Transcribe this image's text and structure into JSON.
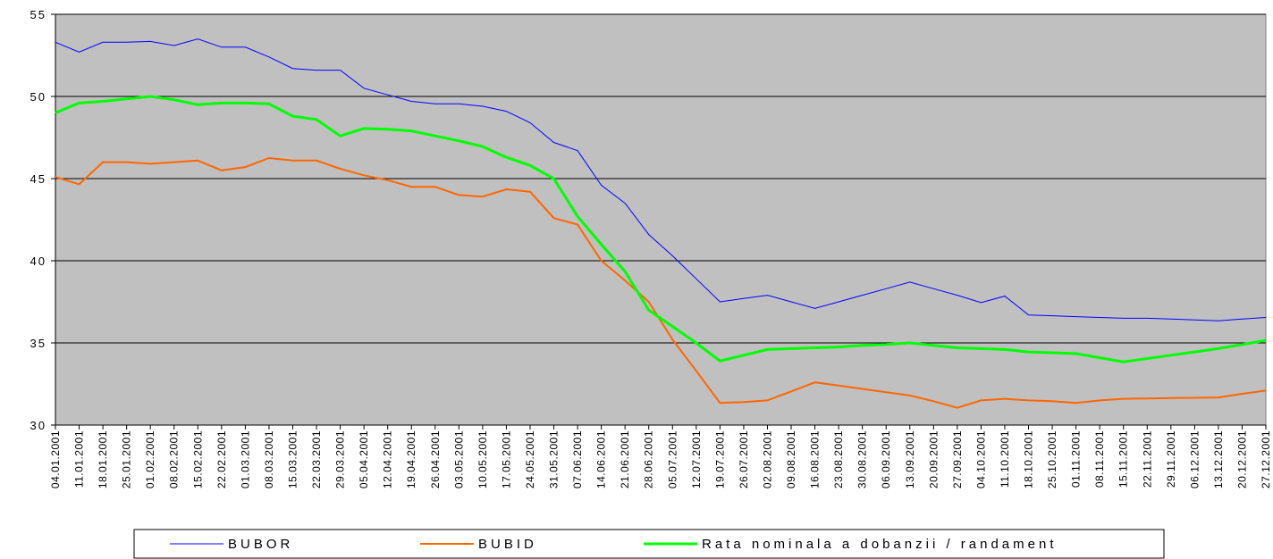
{
  "chart_data": {
    "type": "line",
    "categories": [
      "04.01.2001",
      "11.01.2001",
      "18.01.2001",
      "25.01.2001",
      "01.02.2001",
      "08.02.2001",
      "15.02.2001",
      "22.02.2001",
      "01.03.2001",
      "08.03.2001",
      "15.03.2001",
      "22.03.2001",
      "29.03.2001",
      "05.04.2001",
      "12.04.2001",
      "19.04.2001",
      "26.04.2001",
      "03.05.2001",
      "10.05.2001",
      "17.05.2001",
      "24.05.2001",
      "31.05.2001",
      "07.06.2001",
      "14.06.2001",
      "21.06.2001",
      "28.06.2001",
      "05.07.2001",
      "12.07.2001",
      "19.07.2001",
      "26.07.2001",
      "02.08.2001",
      "09.08.2001",
      "16.08.2001",
      "23.08.2001",
      "30.08.2001",
      "06.09.2001",
      "13.09.2001",
      "20.09.2001",
      "27.09.2001",
      "04.10.2001",
      "11.10.2001",
      "18.10.2001",
      "25.10.2001",
      "01.11.2001",
      "08.11.2001",
      "15.11.2001",
      "22.11.2001",
      "29.11.2001",
      "06.12.2001",
      "13.12.2001",
      "20.12.2001",
      "27.12.2001"
    ],
    "series": [
      {
        "name": "BUBOR",
        "color": "#0000ff",
        "width": 1,
        "values": [
          53.3,
          52.7,
          53.3,
          53.3,
          53.35,
          53.1,
          53.5,
          53.0,
          53.0,
          52.4,
          51.7,
          51.6,
          51.6,
          50.5,
          50.1,
          49.7,
          49.55,
          49.55,
          49.4,
          49.1,
          48.4,
          47.2,
          46.7,
          44.6,
          43.5,
          41.6,
          40.3,
          38.9,
          37.5,
          37.7,
          37.9,
          37.5,
          37.1,
          37.5,
          37.9,
          38.3,
          38.7,
          38.3,
          37.9,
          37.45,
          37.85,
          36.7,
          36.65,
          36.6,
          36.55,
          36.5,
          36.5,
          36.45,
          36.4,
          36.35,
          36.45,
          36.55
        ]
      },
      {
        "name": "BUBID",
        "color": "#ff6600",
        "width": 2,
        "values": [
          45.1,
          44.65,
          46.0,
          46.0,
          45.9,
          46.0,
          46.1,
          45.5,
          45.7,
          46.25,
          46.1,
          46.1,
          45.6,
          45.2,
          44.9,
          44.5,
          44.5,
          44.0,
          43.9,
          44.35,
          44.2,
          42.6,
          42.2,
          40.0,
          38.8,
          37.5,
          35.2,
          33.3,
          31.35,
          31.4,
          31.5,
          32.05,
          32.6,
          32.4,
          32.2,
          32.0,
          31.8,
          31.45,
          31.05,
          31.5,
          31.6,
          31.5,
          31.45,
          31.35,
          31.5,
          31.6,
          31.62,
          31.64,
          31.66,
          31.68,
          31.9,
          32.1
        ]
      },
      {
        "name": "Rata nominala a dobanzii / randament",
        "color": "#00ff00",
        "width": 3,
        "values": [
          49.0,
          49.6,
          49.7,
          49.85,
          50.0,
          49.8,
          49.5,
          49.6,
          49.6,
          49.55,
          48.8,
          48.6,
          47.6,
          48.05,
          48.0,
          47.9,
          47.6,
          47.3,
          46.95,
          46.3,
          45.8,
          45.0,
          42.7,
          41.0,
          39.35,
          37.0,
          36.0,
          35.0,
          33.9,
          34.25,
          34.6,
          34.65,
          34.7,
          34.75,
          34.85,
          34.9,
          35.0,
          34.85,
          34.7,
          34.65,
          34.6,
          34.45,
          34.4,
          34.35,
          34.1,
          33.85,
          34.05,
          34.25,
          34.45,
          34.65,
          34.9,
          35.15
        ]
      }
    ],
    "ylim": [
      30,
      55
    ],
    "yticks": [
      30,
      35,
      40,
      45,
      50,
      55
    ],
    "grid": true,
    "legend": "bottom",
    "background": "#c0c0c0"
  }
}
